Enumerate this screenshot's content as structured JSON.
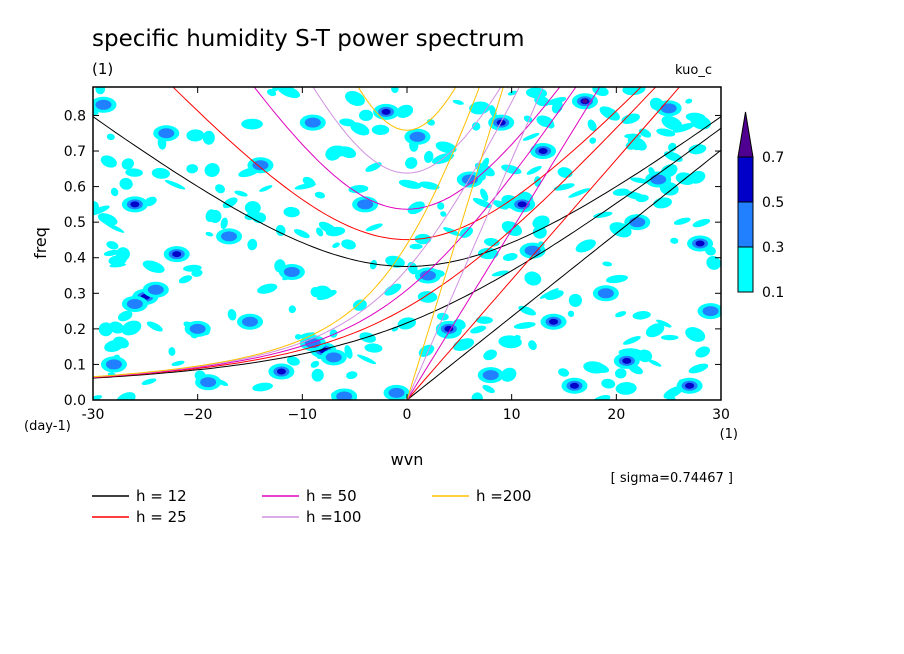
{
  "chart_data": {
    "type": "heatmap",
    "title": "specific humidity S-T power spectrum",
    "subtitle_left": "(1)",
    "subtitle_right": "kuo_c",
    "xlabel": "wvn",
    "ylabel": "freq",
    "x_unit": "(1)",
    "y_unit": "(day-1)",
    "xlim": [
      -30,
      30
    ],
    "ylim": [
      0,
      0.88
    ],
    "x_ticks": [
      -30,
      -20,
      -10,
      0,
      10,
      20,
      30
    ],
    "x_tick_labels": [
      "-30",
      "−20",
      "−10",
      "0",
      "10",
      "20",
      "30"
    ],
    "y_ticks": [
      0,
      0.1,
      0.2,
      0.3,
      0.4,
      0.5,
      0.6,
      0.7,
      0.8
    ],
    "y_tick_labels": [
      "0.0",
      "0.1",
      "0.2",
      "0.3",
      "0.4",
      "0.5",
      "0.6",
      "0.7",
      "0.8"
    ],
    "sigma_text": "[ sigma=0.74467 ]",
    "colorbar": {
      "levels": [
        0.1,
        0.3,
        0.5,
        0.7
      ],
      "labels": [
        "0.1",
        "0.3",
        "0.5",
        "0.7"
      ],
      "colors": [
        "#00ffff",
        "#2080ff",
        "#0000c8",
        "#500090"
      ]
    },
    "dispersion_curves": [
      {
        "label": "h = 12",
        "h": 12,
        "color": "#000000"
      },
      {
        "label": "h = 25",
        "h": 25,
        "color": "#ff0000"
      },
      {
        "label": "h = 50",
        "h": 50,
        "color": "#e000c0"
      },
      {
        "label": "h =100",
        "h": 100,
        "color": "#d090e0"
      },
      {
        "label": "h =200",
        "h": 200,
        "color": "#ffc000"
      }
    ],
    "blobs": [
      {
        "k": -25,
        "f": 0.29,
        "l": 2
      },
      {
        "k": -26,
        "f": 0.27,
        "l": 1
      },
      {
        "k": -24,
        "f": 0.31,
        "l": 1
      },
      {
        "k": 4,
        "f": 0.195,
        "l": 3
      },
      {
        "k": 4,
        "f": 0.2,
        "l": 2
      },
      {
        "k": -8,
        "f": 0.14,
        "l": 2
      },
      {
        "k": -7,
        "f": 0.12,
        "l": 1
      },
      {
        "k": -9,
        "f": 0.16,
        "l": 1
      },
      {
        "k": -2,
        "f": 0.81,
        "l": 2
      },
      {
        "k": 13,
        "f": 0.7,
        "l": 2
      },
      {
        "k": 17,
        "f": 0.84,
        "l": 3
      },
      {
        "k": 28,
        "f": 0.44,
        "l": 2
      },
      {
        "k": -22,
        "f": 0.41,
        "l": 2
      },
      {
        "k": -26,
        "f": 0.55,
        "l": 2
      },
      {
        "k": 14,
        "f": 0.22,
        "l": 2
      },
      {
        "k": 21,
        "f": 0.11,
        "l": 2
      },
      {
        "k": -12,
        "f": 0.08,
        "l": 2
      },
      {
        "k": 11,
        "f": 0.55,
        "l": 2
      },
      {
        "k": -6,
        "f": 0.01,
        "l": 1
      },
      {
        "k": 27,
        "f": 0.04,
        "l": 2
      },
      {
        "k": 9,
        "f": 0.78,
        "l": 2
      },
      {
        "k": -15,
        "f": 0.22,
        "l": 1
      },
      {
        "k": -20,
        "f": 0.2,
        "l": 1
      },
      {
        "k": 16,
        "f": 0.04,
        "l": 2
      },
      {
        "k": -23,
        "f": 0.75,
        "l": 1
      },
      {
        "k": 2,
        "f": 0.35,
        "l": 1
      },
      {
        "k": 24,
        "f": 0.62,
        "l": 1
      },
      {
        "k": -17,
        "f": 0.46,
        "l": 1
      },
      {
        "k": 6,
        "f": 0.62,
        "l": 1
      },
      {
        "k": -28,
        "f": 0.1,
        "l": 1
      },
      {
        "k": 19,
        "f": 0.3,
        "l": 1
      },
      {
        "k": -4,
        "f": 0.55,
        "l": 1
      },
      {
        "k": 25,
        "f": 0.82,
        "l": 1
      },
      {
        "k": -11,
        "f": 0.36,
        "l": 1
      },
      {
        "k": 8,
        "f": 0.07,
        "l": 1
      },
      {
        "k": -14,
        "f": 0.66,
        "l": 1
      },
      {
        "k": 1,
        "f": 0.74,
        "l": 1
      },
      {
        "k": 12,
        "f": 0.42,
        "l": 1
      },
      {
        "k": -19,
        "f": 0.05,
        "l": 1
      },
      {
        "k": 22,
        "f": 0.5,
        "l": 1
      },
      {
        "k": -29,
        "f": 0.83,
        "l": 1
      },
      {
        "k": -1,
        "f": 0.02,
        "l": 1
      },
      {
        "k": 29,
        "f": 0.25,
        "l": 1
      },
      {
        "k": -9,
        "f": 0.78,
        "l": 1
      }
    ]
  }
}
